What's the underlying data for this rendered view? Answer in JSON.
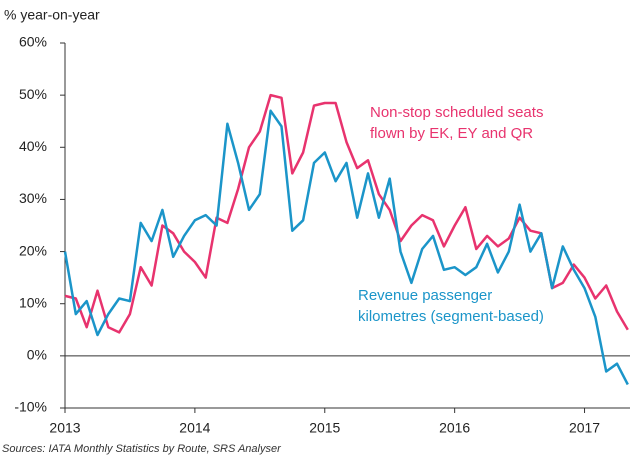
{
  "chart_data": {
    "type": "line",
    "y_label": "% year-on-year",
    "source": "Sources: IATA Monthly Statistics by Route, SRS Analyser",
    "x": [
      2013,
      2013.083,
      2013.167,
      2013.25,
      2013.333,
      2013.417,
      2013.5,
      2013.583,
      2013.667,
      2013.75,
      2013.833,
      2013.917,
      2014,
      2014.083,
      2014.167,
      2014.25,
      2014.333,
      2014.417,
      2014.5,
      2014.583,
      2014.667,
      2014.75,
      2014.833,
      2014.917,
      2015,
      2015.083,
      2015.167,
      2015.25,
      2015.333,
      2015.417,
      2015.5,
      2015.583,
      2015.667,
      2015.75,
      2015.833,
      2015.917,
      2016,
      2016.083,
      2016.167,
      2016.25,
      2016.333,
      2016.417,
      2016.5,
      2016.583,
      2016.667,
      2016.75,
      2016.833,
      2016.917,
      2017,
      2017.083,
      2017.167,
      2017.25,
      2017.333
    ],
    "xlim": [
      2013,
      2017.35
    ],
    "xticks": [
      2013,
      2014,
      2015,
      2016,
      2017
    ],
    "ylim": [
      -10,
      60
    ],
    "yticks": [
      {
        "value": -10,
        "label": "-10%"
      },
      {
        "value": 0,
        "label": "0%"
      },
      {
        "value": 10,
        "label": "10%"
      },
      {
        "value": 20,
        "label": "20%"
      },
      {
        "value": 30,
        "label": "30%"
      },
      {
        "value": 40,
        "label": "40%"
      },
      {
        "value": 50,
        "label": "50%"
      },
      {
        "value": 60,
        "label": "60%"
      }
    ],
    "grid": false,
    "series": [
      {
        "label_lines": [
          "Non-stop scheduled seats",
          "flown by EK, EY and QR"
        ],
        "color": "#e8336e",
        "values": [
          11.5,
          11,
          5.5,
          12.5,
          5.5,
          4.5,
          8,
          17,
          13.5,
          25,
          23.5,
          20,
          18,
          15,
          26.5,
          25.5,
          32,
          40,
          43,
          50,
          49.5,
          35,
          39,
          48,
          48.5,
          48.5,
          41,
          36,
          37.5,
          31,
          28,
          22,
          25,
          27,
          26,
          21,
          25,
          28.5,
          20.5,
          23,
          21,
          22.5,
          26.5,
          24,
          23.5,
          13,
          14,
          17.5,
          15,
          11,
          13.5,
          8.5,
          5
        ]
      },
      {
        "label_lines": [
          "Revenue passenger",
          "kilometres (segment-based)"
        ],
        "color": "#1b95c9",
        "values": [
          20,
          8,
          10.5,
          4,
          8,
          11,
          10.5,
          25.5,
          22,
          28,
          19,
          23,
          26,
          27,
          25,
          44.5,
          37,
          28,
          31,
          47,
          44,
          24,
          26,
          37,
          39,
          33.5,
          37,
          26.5,
          35,
          26.5,
          34,
          20,
          14,
          20.5,
          23,
          16.5,
          17,
          15.5,
          17,
          21.5,
          16,
          20,
          29,
          20,
          23.5,
          13,
          21,
          16.5,
          13,
          7.5,
          -3,
          -1.5,
          -5.5
        ]
      }
    ]
  }
}
